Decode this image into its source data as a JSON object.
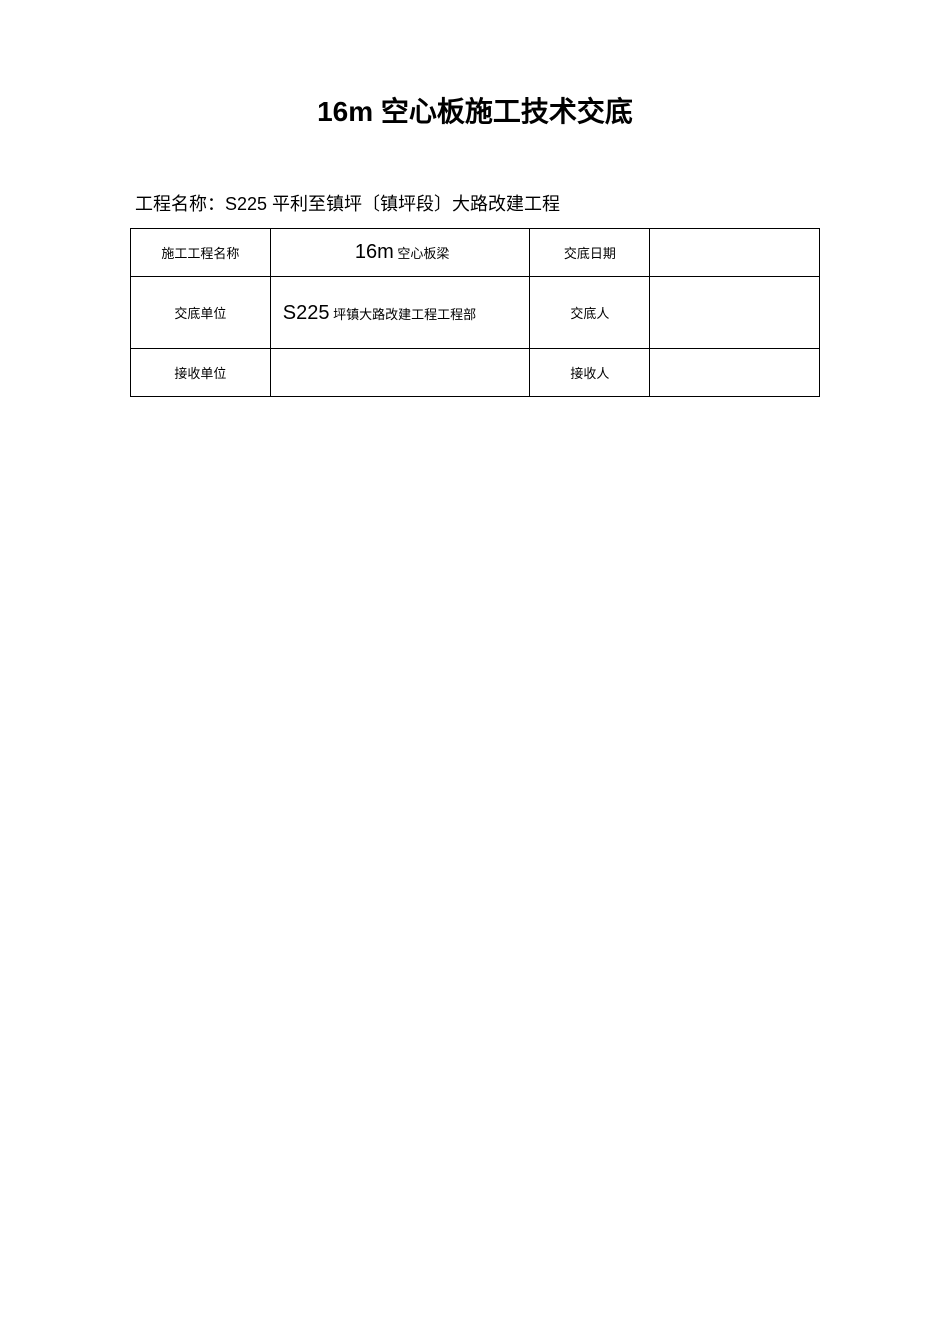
{
  "title": "16m 空心板施工技术交底",
  "project_name_label": "工程名称：S225 平利至镇坪〔镇坪段〕大路改建工程",
  "table": {
    "rows": [
      {
        "label1": "施工工程名称",
        "value1_prefix": "16m",
        "value1_suffix": "空心板梁",
        "label2": "交底日期",
        "value2": ""
      },
      {
        "label1": "交底单位",
        "value1_prefix": "S225",
        "value1_suffix": "坪镇大路改建工程工程部",
        "label2": "交底人",
        "value2": ""
      },
      {
        "label1": "接收单位",
        "value1": "",
        "label2": "接收人",
        "value2": ""
      }
    ]
  }
}
